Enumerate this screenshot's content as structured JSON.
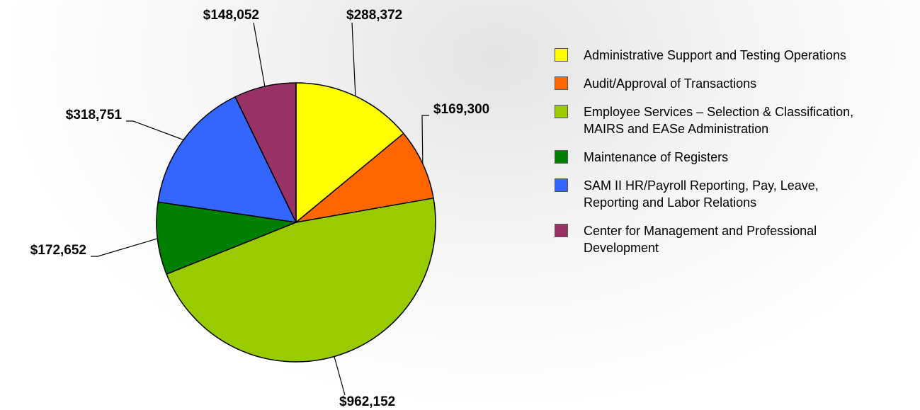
{
  "chart_data": {
    "type": "pie",
    "categories": [
      "Administrative Support and Testing Operations",
      "Audit/Approval of Transactions",
      "Employee Services – Selection & Classification,\nMAIRS and EASe Administration",
      "Maintenance of Registers",
      "SAM II HR/Payroll Reporting, Pay, Leave,\nReporting and Labor Relations",
      "Center for Management and Professional\nDevelopment"
    ],
    "values": [
      288372,
      169300,
      962152,
      172652,
      318751,
      148052
    ],
    "value_labels": [
      "$288,372",
      "$169,300",
      "$962,152",
      "$172,652",
      "$318,751",
      "$148,052"
    ],
    "colors": [
      "#ffff00",
      "#ff6600",
      "#99cc00",
      "#008000",
      "#3366ff",
      "#993366"
    ],
    "legend": "right"
  }
}
